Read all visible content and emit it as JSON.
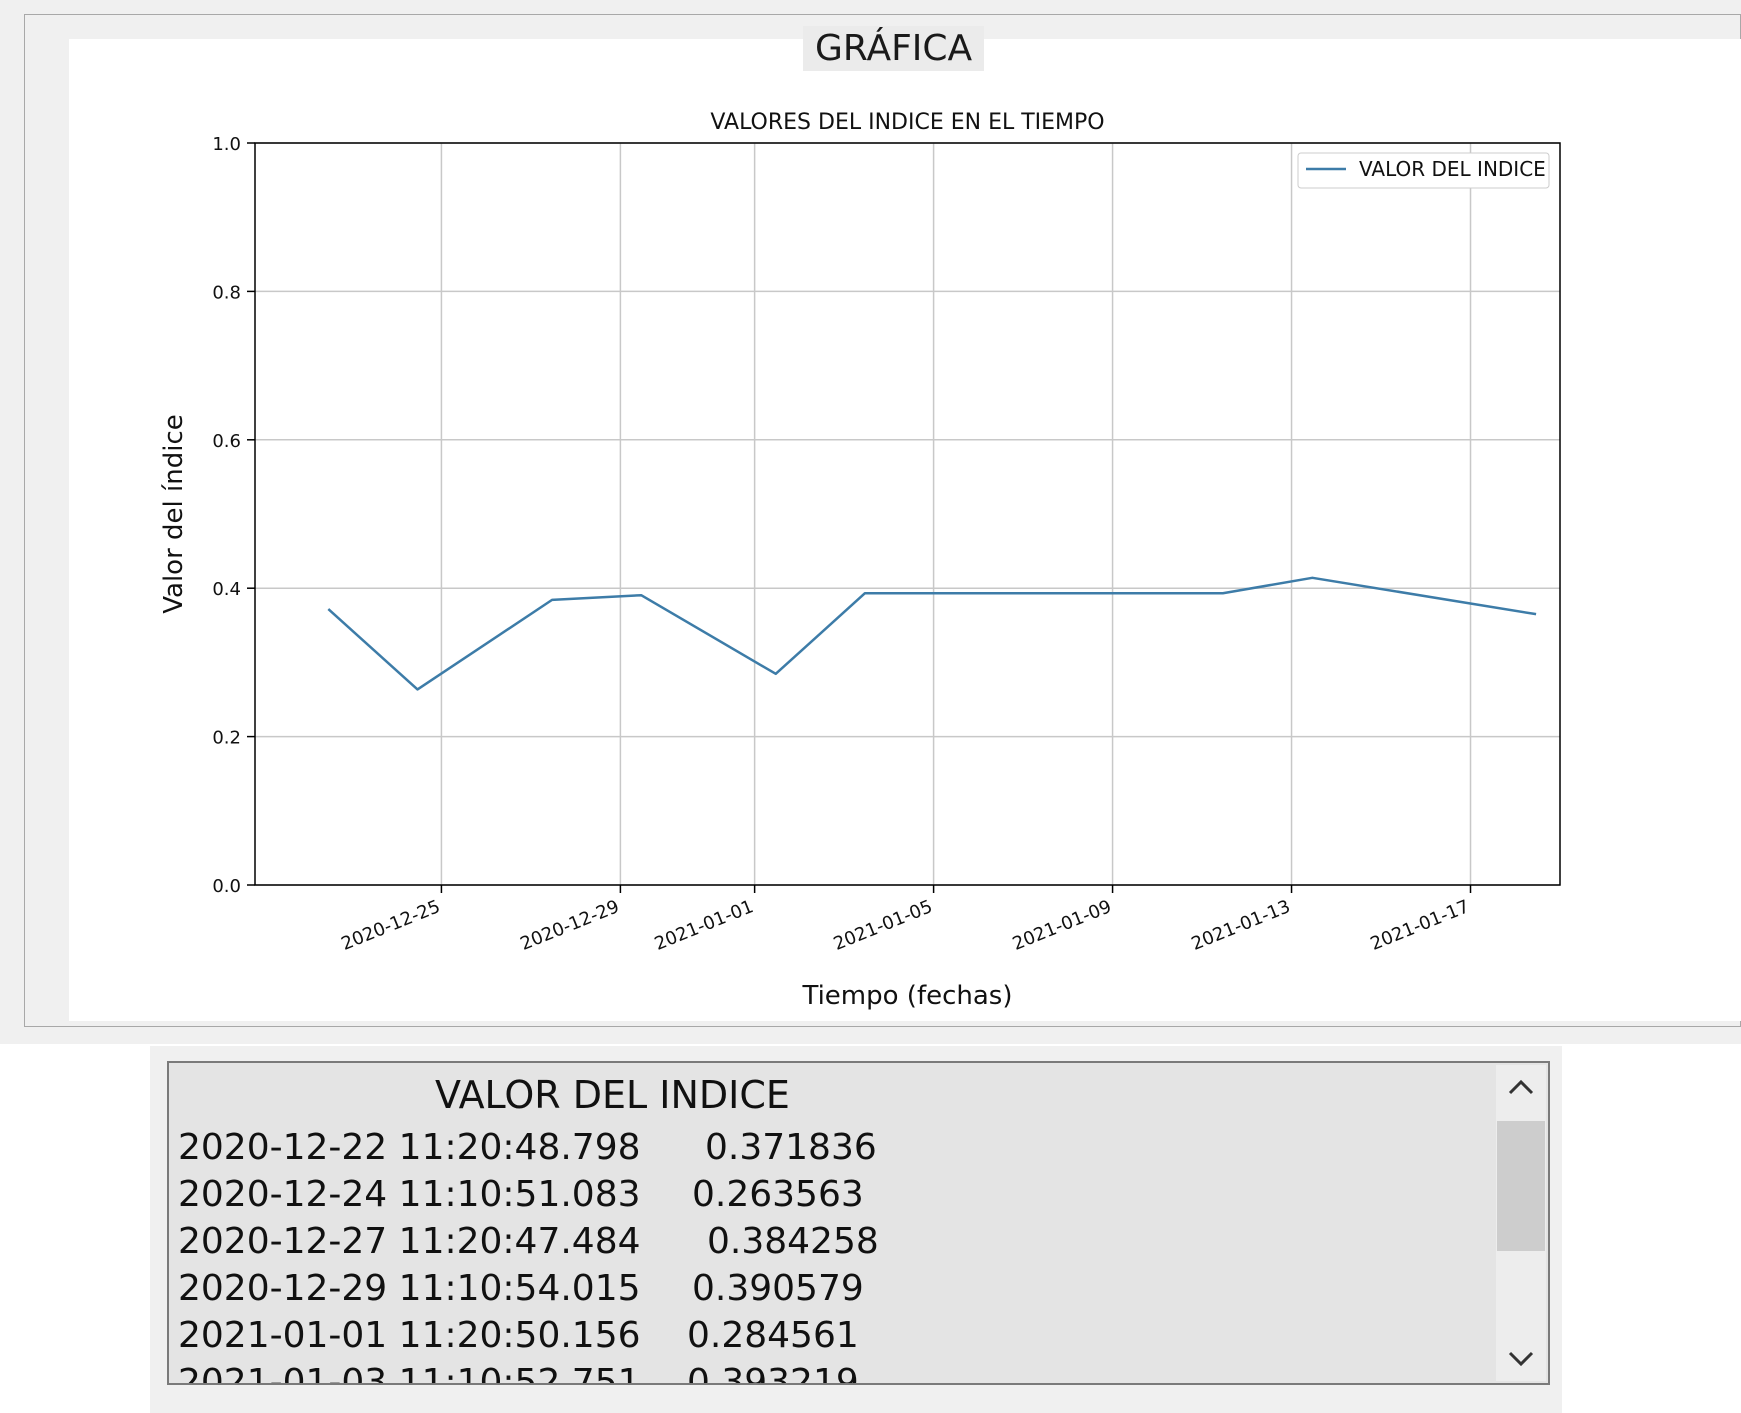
{
  "window": {
    "frame_title": "GRÁFICA"
  },
  "chart_data": {
    "type": "line",
    "title": "VALORES DEL INDICE EN EL TIEMPO",
    "xlabel": "Tiempo (fechas)",
    "ylabel": "Valor del índice",
    "ylim": [
      0,
      1
    ],
    "xlim": [
      "2020-12-20T20:00",
      "2021-01-19T00:00"
    ],
    "yticks": [
      "0.0",
      "0.2",
      "0.4",
      "0.6",
      "0.8",
      "1.0"
    ],
    "xticks": [
      "2020-12-25",
      "2020-12-29",
      "2021-01-01",
      "2021-01-05",
      "2021-01-09",
      "2021-01-13",
      "2021-01-17"
    ],
    "grid": true,
    "legend_position": "top-right",
    "series": [
      {
        "name": "VALOR DEL INDICE",
        "color": "#3d7ca8",
        "x": [
          "2020-12-22T11:20",
          "2020-12-24T11:10",
          "2020-12-27T11:20",
          "2020-12-29T11:10",
          "2021-01-01T11:20",
          "2021-01-03T11:10",
          "2021-01-11T11:10",
          "2021-01-13T11:10",
          "2021-01-18T11:10"
        ],
        "values": [
          0.371836,
          0.263563,
          0.384258,
          0.390579,
          0.284561,
          0.393219,
          0.393219,
          0.414,
          0.365
        ]
      }
    ]
  },
  "list": {
    "header": "VALOR DEL INDICE",
    "rows": [
      {
        "timestamp": "2020-12-22 11:20:48.798",
        "value": "0.371836"
      },
      {
        "timestamp": "2020-12-24 11:10:51.083",
        "value": "0.263563"
      },
      {
        "timestamp": "2020-12-27 11:20:47.484",
        "value": "0.384258"
      },
      {
        "timestamp": "2020-12-29 11:10:54.015",
        "value": "0.390579"
      },
      {
        "timestamp": "2021-01-01 11:20:50.156",
        "value": "0.284561"
      },
      {
        "timestamp": "2021-01-03 11:10:52.751",
        "value": "0.393219"
      }
    ],
    "scroll_up_icon": "chevron-up-icon",
    "scroll_down_icon": "chevron-down-icon"
  }
}
